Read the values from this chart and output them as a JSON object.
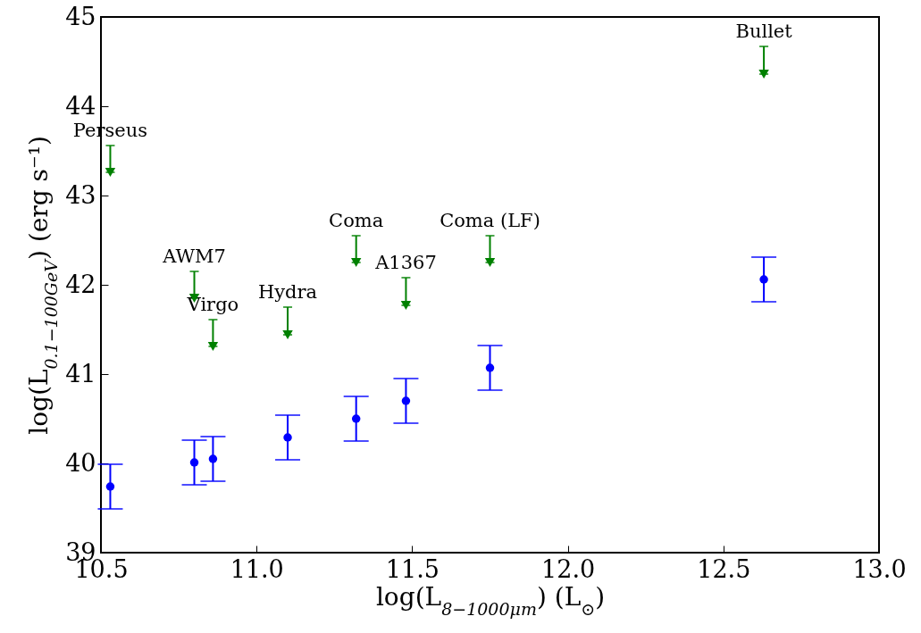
{
  "chart_data": {
    "type": "scatter",
    "xlabel": "log(L$_{8−1000μm}$) (L$_{⊙}$)",
    "ylabel": "log(L$_{0.1−100GeV}$) (erg s⁻¹)",
    "xlim": [
      10.5,
      13.0
    ],
    "xticks": [
      10.5,
      {
        "value": 11,
        "label": "11.0"
      },
      11.5,
      {
        "value": 12,
        "label": "12.0"
      },
      12.5,
      {
        "value": 13,
        "label": "13.0"
      }
    ],
    "ylim": [
      39,
      45
    ],
    "yticks": [
      39,
      40,
      41,
      42,
      43,
      44,
      45
    ],
    "grid": false,
    "series": [
      {
        "color": "#0000ff",
        "marker": "circle",
        "x": [
          10.53,
          10.8,
          10.86,
          11.1,
          11.32,
          11.48,
          11.75,
          12.63
        ],
        "values": [
          39.74,
          40.01,
          40.05,
          40.29,
          40.5,
          40.7,
          41.07,
          42.06
        ],
        "errors": [
          0.25,
          0.25,
          0.25,
          0.25,
          0.25,
          0.25,
          0.25,
          0.25
        ]
      },
      {
        "color": "#008000",
        "marker": "triangle",
        "x": [
          10.53,
          10.8,
          10.86,
          11.1,
          11.32,
          11.48,
          11.75,
          12.63
        ],
        "values": [
          43.26,
          41.85,
          41.31,
          41.44,
          42.25,
          41.77,
          42.25,
          44.36
        ],
        "errors": [
          [
            43.26,
            43.56
          ],
          [
            41.85,
            42.15
          ],
          [
            41.31,
            41.61
          ],
          [
            41.44,
            41.75
          ],
          [
            42.25,
            42.55
          ],
          [
            41.77,
            42.08
          ],
          [
            42.25,
            42.55
          ],
          [
            44.36,
            44.67
          ]
        ]
      }
    ],
    "annotations": [
      {
        "text": "Perseus",
        "x": 10.53,
        "y": 43.56
      },
      {
        "text": "AWM7",
        "x": 10.8,
        "y": 42.15
      },
      {
        "text": "Virgo",
        "x": 10.86,
        "y": 41.61
      },
      {
        "text": "Hydra",
        "x": 11.1,
        "y": 41.75
      },
      {
        "text": "Coma",
        "x": 11.32,
        "y": 42.55
      },
      {
        "text": "A1367",
        "x": 11.48,
        "y": 42.08
      },
      {
        "text": "Coma (LF)",
        "x": 11.75,
        "y": 42.55
      },
      {
        "text": "Bullet",
        "x": 12.63,
        "y": 44.67
      }
    ]
  }
}
